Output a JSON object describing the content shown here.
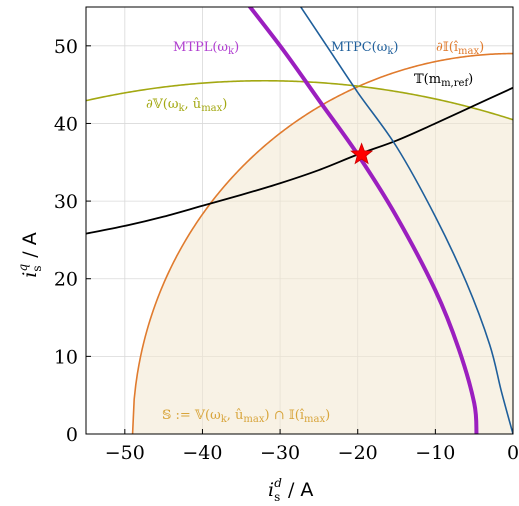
{
  "chart_data": {
    "type": "line",
    "xlabel": "i_s^d / A",
    "ylabel": "i_s^q / A",
    "xlim": [
      -55,
      0
    ],
    "ylim": [
      0,
      55
    ],
    "xticks": [
      -50,
      -40,
      -30,
      -20,
      -10,
      0
    ],
    "yticks": [
      0,
      10,
      20,
      30,
      40,
      50
    ],
    "xtick_labels": [
      "−50",
      "−40",
      "−30",
      "−20",
      "−10",
      "0"
    ],
    "ytick_labels": [
      "0",
      "10",
      "20",
      "30",
      "40",
      "50"
    ],
    "grid": true,
    "curves": {
      "current_limit": {
        "label": "∂𝕀(î_max)",
        "color": "#e07b2e",
        "center": [
          0,
          0
        ],
        "radius": 49
      },
      "voltage_limit": {
        "label": "∂𝕍(ω_k, û_max)",
        "color": "#a3a812",
        "center": [
          -32,
          -59
        ],
        "radius": 104.5
      },
      "torque_hyperbola": {
        "label": "𝕋(m_m,ref)",
        "color": "#000000",
        "x": [
          -55,
          -50,
          -45,
          -40,
          -35,
          -30,
          -25,
          -20,
          -15,
          -10,
          -5,
          0
        ],
        "y": [
          25.8,
          26.8,
          28.0,
          29.4,
          30.8,
          32.3,
          34.0,
          36.0,
          37.8,
          40.0,
          42.3,
          44.6
        ]
      },
      "mtpl": {
        "label": "MTPL(ω_k)",
        "color": "#9b1fbf",
        "x": [
          -37,
          -30,
          -25,
          -20,
          -15,
          -10,
          -7,
          -5,
          -4.7
        ],
        "y": [
          59,
          50,
          43,
          36,
          28,
          18.5,
          11,
          4,
          0
        ]
      },
      "mtpc": {
        "label": "MTPC(ω_k)",
        "color": "#1f5f9b",
        "x": [
          -30,
          -24,
          -20,
          -15,
          -10,
          -6,
          -3,
          -1.5,
          0
        ],
        "y": [
          59,
          50,
          44,
          37,
          28,
          19.5,
          11.5,
          5.5,
          0
        ]
      }
    },
    "operating_point": {
      "x": -19.5,
      "y": 36,
      "color": "#ff0000",
      "marker": "star"
    },
    "region_label": "𝕊 := 𝕍(ω_k, û_max) ∩ 𝕀(î_max)",
    "region_color": "#f3e8cf"
  }
}
